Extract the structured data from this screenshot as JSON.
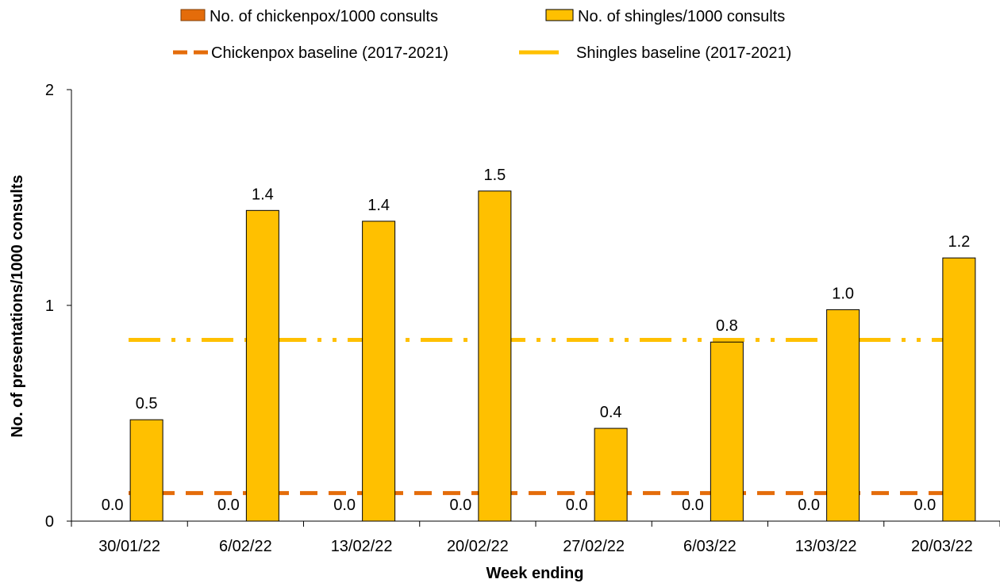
{
  "chart_data": {
    "type": "bar",
    "categories": [
      "30/01/22",
      "6/02/22",
      "13/02/22",
      "20/02/22",
      "27/02/22",
      "6/03/22",
      "13/03/22",
      "20/03/22"
    ],
    "series": [
      {
        "name": "No. of chickenpox/1000 consults",
        "values": [
          0.0,
          0.0,
          0.0,
          0.0,
          0.0,
          0.0,
          0.0,
          0.0
        ],
        "labels": [
          "0.0",
          "0.0",
          "0.0",
          "0.0",
          "0.0",
          "0.0",
          "0.0",
          "0.0"
        ],
        "color": "#E46C0A"
      },
      {
        "name": "No. of shingles/1000 consults",
        "values": [
          0.47,
          1.44,
          1.39,
          1.53,
          0.43,
          0.83,
          0.98,
          1.22
        ],
        "labels": [
          "0.5",
          "1.4",
          "1.4",
          "1.5",
          "0.4",
          "0.8",
          "1.0",
          "1.2"
        ],
        "color": "#FFC000"
      }
    ],
    "baselines": [
      {
        "name": "Chickenpox baseline (2017-2021)",
        "value": 0.13,
        "color": "#E46C0A",
        "style": "dashed"
      },
      {
        "name": "Shingles baseline (2017-2021)",
        "value": 0.84,
        "color": "#FFC000",
        "style": "dash-dot-dot"
      }
    ],
    "xlabel": "Week ending",
    "ylabel": "No. of presentations/1000  consults",
    "ylim": [
      0,
      2
    ],
    "yticks": [
      "0",
      "1",
      "2"
    ],
    "grid": false,
    "legend_position": "top"
  }
}
